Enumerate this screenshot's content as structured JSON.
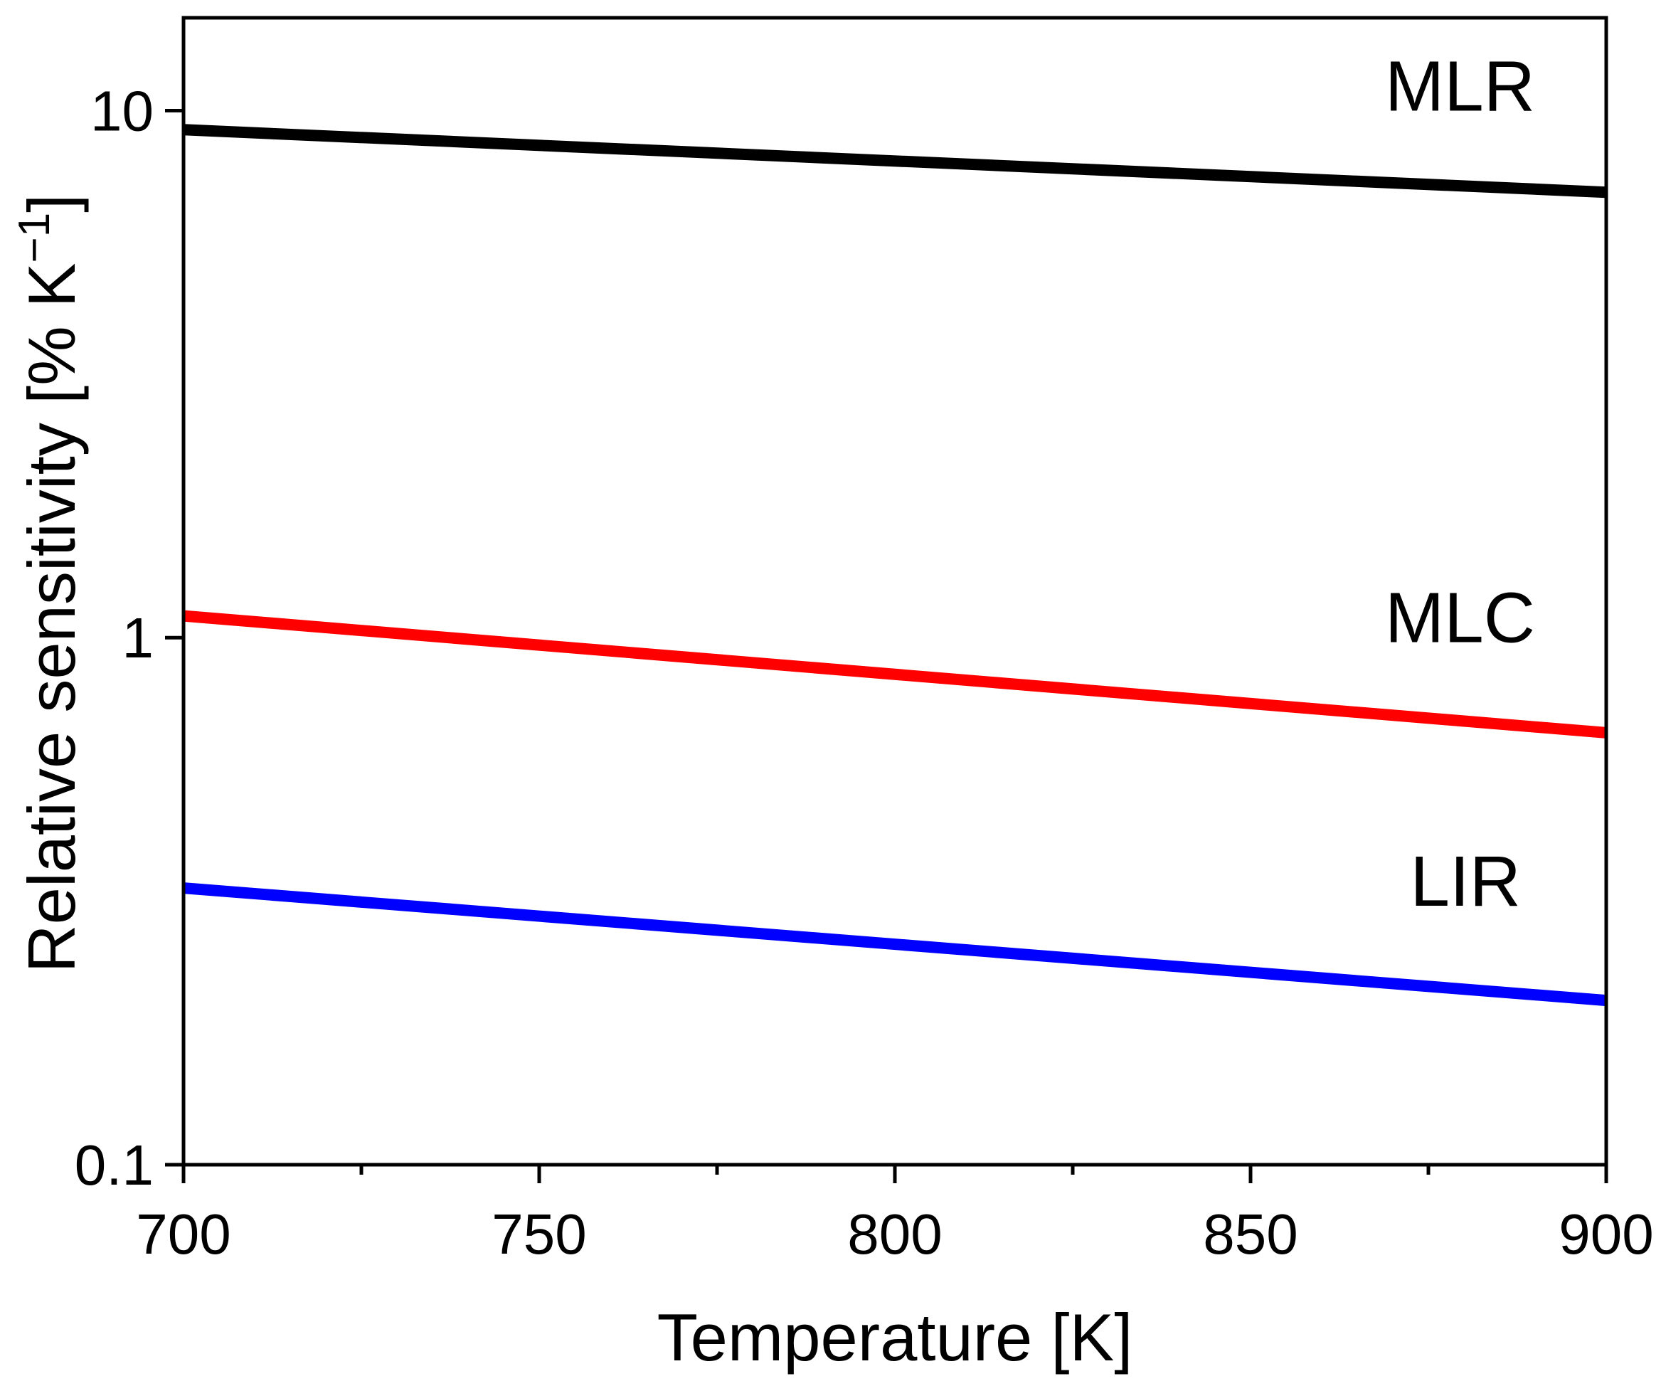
{
  "chart_data": {
    "type": "line",
    "title": "",
    "xlabel": "Temperature [K]",
    "ylabel_main": "Relative sensitivity [% K",
    "ylabel_sup": "−1",
    "ylabel_close": "]",
    "xlim": [
      700,
      900
    ],
    "ylim": [
      0.1,
      15
    ],
    "yscale": "log",
    "x_ticks": [
      700,
      750,
      800,
      850,
      900
    ],
    "x_tick_labels": [
      "700",
      "750",
      "800",
      "850",
      "900"
    ],
    "x_minor_ticks": [
      725,
      775,
      825,
      875
    ],
    "y_ticks": [
      0.1,
      1,
      10
    ],
    "y_tick_labels": [
      "0.1",
      "1",
      "10"
    ],
    "grid": false,
    "series": [
      {
        "name": "MLR",
        "label": "MLR",
        "color": "#000000",
        "x": [
          700,
          900
        ],
        "y": [
          9.2,
          7.0
        ],
        "label_at": [
          890,
          10.0
        ]
      },
      {
        "name": "MLC",
        "label": "MLC",
        "color": "#ff0000",
        "x": [
          700,
          900
        ],
        "y": [
          1.1,
          0.66
        ],
        "label_at": [
          890,
          0.98
        ]
      },
      {
        "name": "LIR",
        "label": "LIR",
        "color": "#0000ff",
        "x": [
          700,
          900
        ],
        "y": [
          0.335,
          0.205
        ],
        "label_at": [
          888,
          0.31
        ]
      }
    ]
  }
}
